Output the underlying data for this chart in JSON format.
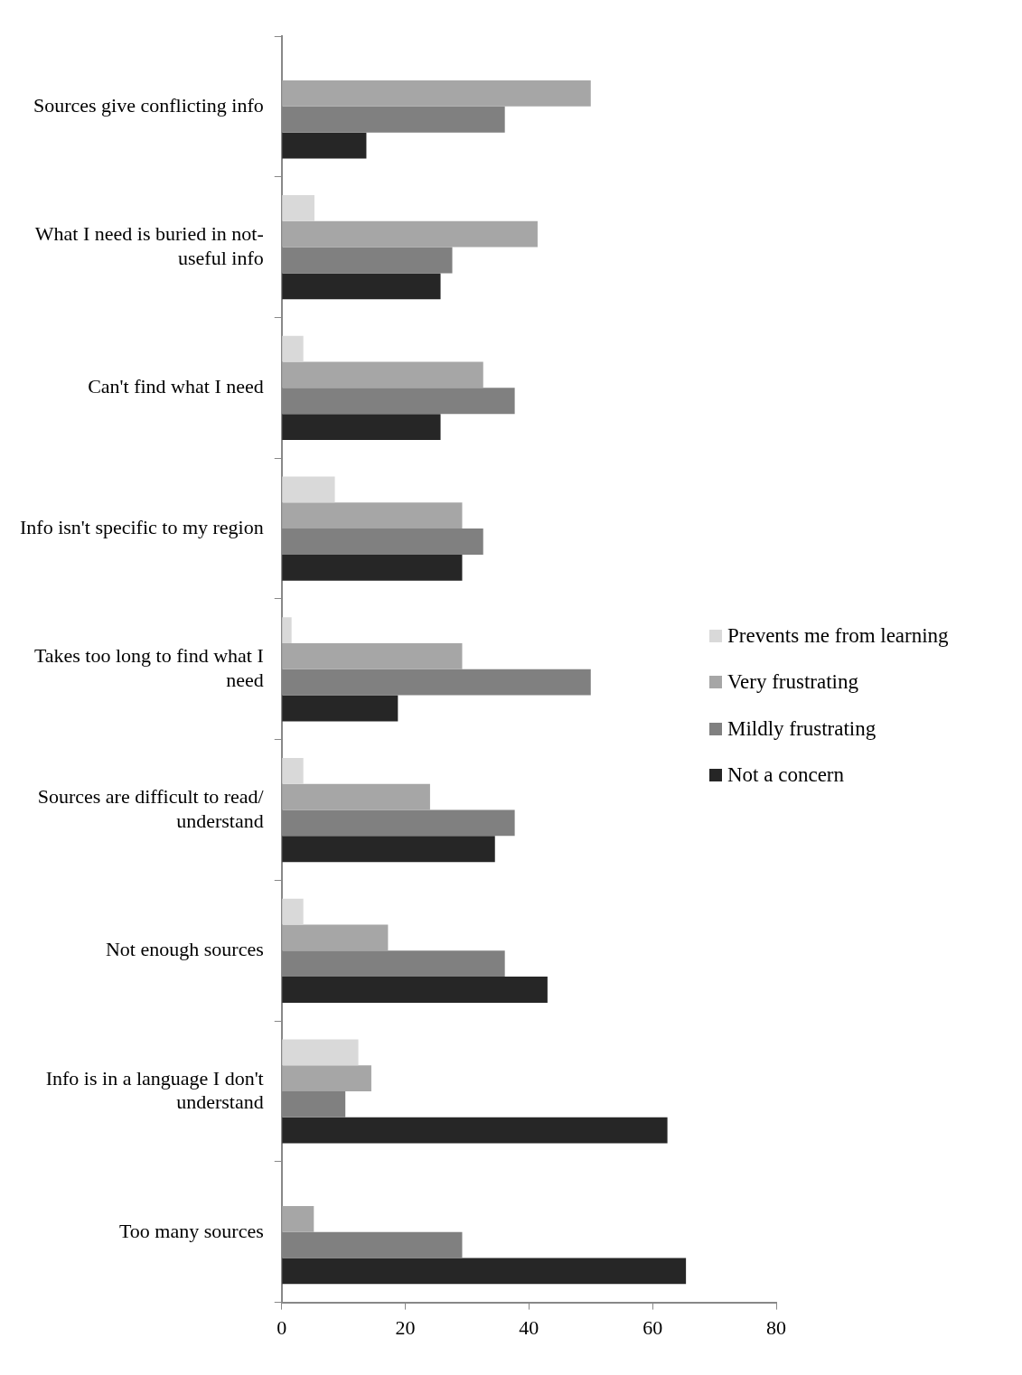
{
  "chart_data": {
    "type": "bar",
    "orientation": "horizontal",
    "categories": [
      "Sources give conflicting info",
      "What I need is buried in not-useful info",
      "Can't find what I need",
      "Info isn't specific to my region",
      "Takes too long to find what I need",
      "Sources are difficult to read/understand",
      "Not enough sources",
      "Info is in a language I don't understand",
      "Too many sources"
    ],
    "series": [
      {
        "name": "Prevents me from learning",
        "color": "#d9d9d9",
        "values": [
          0,
          5.3,
          3.5,
          8.6,
          1.6,
          3.5,
          3.5,
          12.4,
          0
        ]
      },
      {
        "name": "Very frustrating",
        "color": "#a6a6a6",
        "values": [
          50,
          41.4,
          32.6,
          29.2,
          29.2,
          24,
          17.2,
          14.5,
          5.2
        ]
      },
      {
        "name": "Mildly frustrating",
        "color": "#808080",
        "values": [
          36.1,
          27.6,
          37.7,
          32.6,
          50,
          37.7,
          36.1,
          10.3,
          29.2
        ]
      },
      {
        "name": "Not a concern",
        "color": "#262626",
        "values": [
          13.7,
          25.7,
          25.7,
          29.2,
          18.8,
          34.5,
          43,
          62.4,
          65.4
        ]
      }
    ],
    "xlim": [
      0,
      80
    ],
    "xticks": [
      0,
      20,
      40,
      60,
      80
    ],
    "grid": false,
    "legend": "right"
  }
}
